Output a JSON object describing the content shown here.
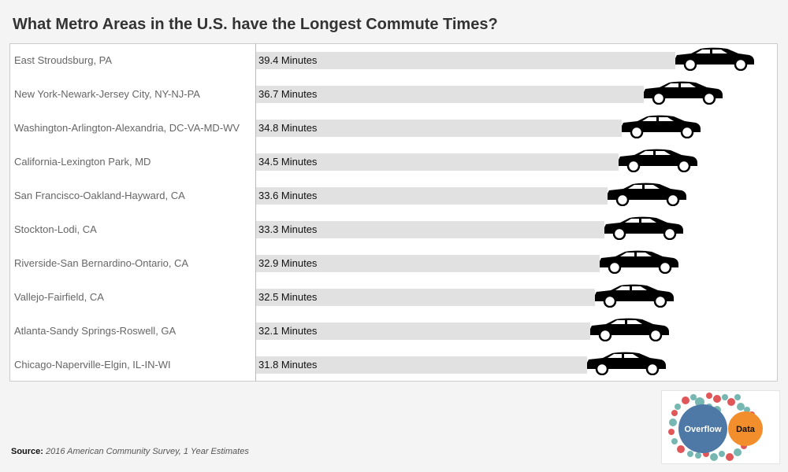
{
  "chart_data": {
    "type": "bar",
    "title": "What Metro Areas in the U.S. have the Longest Commute Times?",
    "categories": [
      "East Stroudsburg, PA",
      "New York-Newark-Jersey City, NY-NJ-PA",
      "Washington-Arlington-Alexandria, DC-VA-MD-WV",
      "California-Lexington Park, MD",
      "San Francisco-Oakland-Hayward, CA",
      "Stockton-Lodi, CA",
      "Riverside-San Bernardino-Ontario, CA",
      "Vallejo-Fairfield, CA",
      "Atlanta-Sandy Springs-Roswell, GA",
      "Chicago-Naperville-Elgin, IL-IN-WI"
    ],
    "values": [
      39.4,
      36.7,
      34.8,
      34.5,
      33.6,
      33.3,
      32.9,
      32.5,
      32.1,
      31.8
    ],
    "value_labels": [
      "39.4 Minutes",
      "36.7 Minutes",
      "34.8 Minutes",
      "34.5 Minutes",
      "33.6 Minutes",
      "33.3 Minutes",
      "32.9 Minutes",
      "32.5 Minutes",
      "32.1 Minutes",
      "31.8 Minutes"
    ],
    "mark_icon": "car-icon",
    "colors": {
      "bar": "#e1e1e1",
      "car": "#000000"
    }
  },
  "source": {
    "label": "Source:",
    "text": "2016 American Community Survey, 1 Year Estimates"
  },
  "logo": {
    "word1": "Overflow",
    "word2": "Data",
    "colors": {
      "blue": "#4e79a7",
      "orange": "#f28e2b",
      "teal": "#76b7b2",
      "red": "#e15759"
    }
  }
}
